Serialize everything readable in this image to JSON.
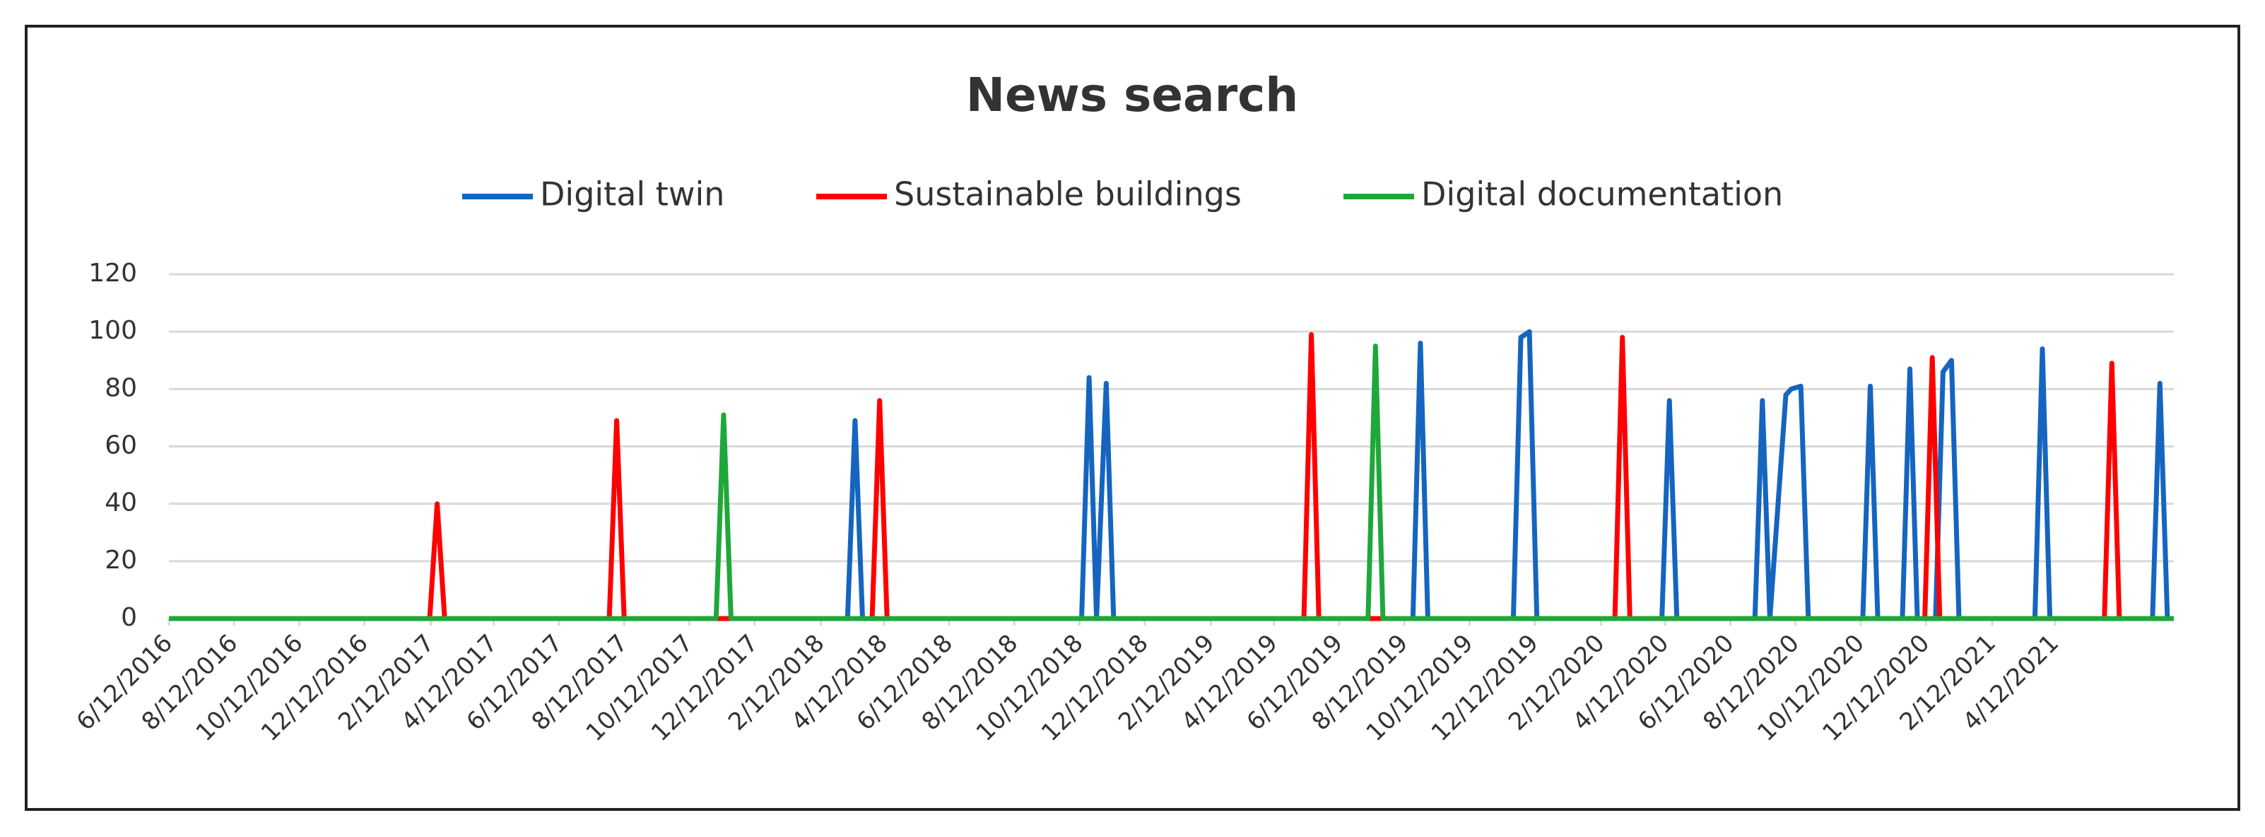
{
  "chart_data": {
    "type": "line",
    "title": "News search",
    "xlim": [
      "6/12/2016",
      "8/1/2021"
    ],
    "xticks": [
      "6/12/2016",
      "8/12/2016",
      "10/12/2016",
      "12/12/2016",
      "2/12/2017",
      "4/12/2017",
      "6/12/2017",
      "8/12/2017",
      "10/12/2017",
      "12/12/2017",
      "2/12/2018",
      "4/12/2018",
      "6/12/2018",
      "8/12/2018",
      "10/12/2018",
      "12/12/2018",
      "2/12/2019",
      "4/12/2019",
      "6/12/2019",
      "8/12/2019",
      "10/12/2019",
      "12/12/2019",
      "2/12/2020",
      "4/12/2020",
      "6/12/2020",
      "8/12/2020",
      "10/12/2020",
      "12/12/2020",
      "2/12/2021",
      "4/12/2021"
    ],
    "ylim": [
      0,
      120
    ],
    "yticks": [
      0,
      20,
      40,
      60,
      80,
      100,
      120
    ],
    "grid": true,
    "series": [
      {
        "name": "Digital twin",
        "color": "#1565c0",
        "x": [
          "6/12/2016",
          "3/9/2018",
          "3/16/2018",
          "3/23/2018",
          "10/14/2018",
          "10/21/2018",
          "10/28/2018",
          "11/6/2018",
          "11/13/2018",
          "8/20/2019",
          "8/27/2019",
          "9/3/2019",
          "11/22/2019",
          "11/29/2019",
          "12/7/2019",
          "12/14/2019",
          "4/9/2020",
          "4/16/2020",
          "4/23/2020",
          "7/5/2020",
          "7/12/2020",
          "7/19/2020",
          "8/3/2020",
          "8/8/2020",
          "8/17/2020",
          "8/24/2020",
          "10/14/2020",
          "10/21/2020",
          "10/28/2020",
          "11/20/2020",
          "11/27/2020",
          "12/4/2020",
          "12/21/2020",
          "12/28/2020",
          "1/5/2021",
          "1/12/2021",
          "3/24/2021",
          "3/31/2021",
          "4/7/2021",
          "7/12/2021",
          "7/19/2021",
          "7/26/2021",
          "8/1/2021"
        ],
        "values": [
          0,
          0,
          69,
          0,
          0,
          84,
          0,
          82,
          0,
          0,
          96,
          0,
          0,
          98,
          100,
          0,
          0,
          76,
          0,
          0,
          76,
          0,
          78,
          80,
          81,
          0,
          0,
          81,
          0,
          0,
          87,
          0,
          0,
          86,
          90,
          0,
          0,
          94,
          0,
          0,
          82,
          0,
          0
        ]
      },
      {
        "name": "Sustainable buildings",
        "color": "#ff0000",
        "x": [
          "6/12/2016",
          "2/11/2017",
          "2/18/2017",
          "2/25/2017",
          "7/29/2017",
          "8/5/2017",
          "8/12/2017",
          "4/1/2018",
          "4/8/2018",
          "4/15/2018",
          "5/10/2019",
          "5/17/2019",
          "5/24/2019",
          "2/25/2020",
          "3/3/2020",
          "3/10/2020",
          "12/11/2020",
          "12/18/2020",
          "12/25/2020",
          "5/28/2021",
          "6/4/2021",
          "6/11/2021",
          "8/1/2021"
        ],
        "values": [
          0,
          0,
          40,
          0,
          0,
          69,
          0,
          0,
          76,
          0,
          0,
          99,
          0,
          0,
          98,
          0,
          0,
          91,
          0,
          0,
          89,
          0,
          0
        ]
      },
      {
        "name": "Digital documentation",
        "color": "#1fa83a",
        "x": [
          "6/12/2016",
          "11/6/2017",
          "11/13/2017",
          "11/20/2017",
          "7/9/2019",
          "7/16/2019",
          "7/23/2019",
          "8/1/2021"
        ],
        "values": [
          0,
          0,
          71,
          0,
          0,
          95,
          0,
          0
        ]
      }
    ]
  }
}
